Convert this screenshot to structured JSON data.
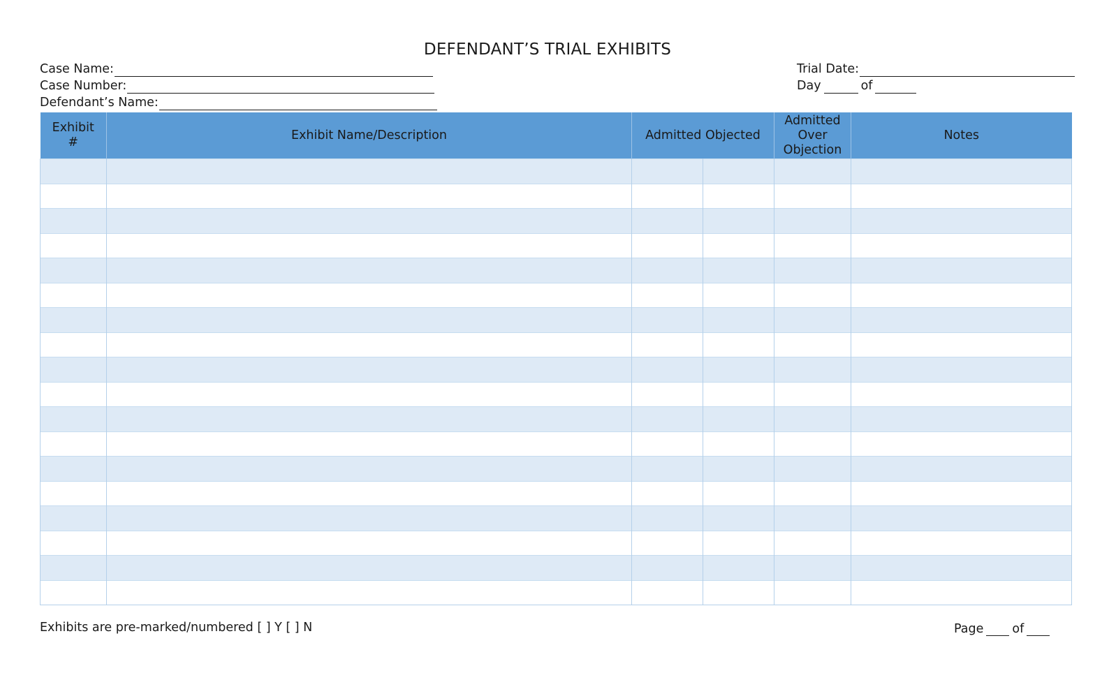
{
  "document": {
    "title": "DEFENDANT’S TRIAL EXHIBITS"
  },
  "fields": {
    "case_name_label": "Case Name:",
    "case_number_label": "Case Number:",
    "defendant_name_label": "Defendant’s Name:",
    "trial_date_label": "Trial Date:",
    "day_label": "Day",
    "day_of_label": "of"
  },
  "table": {
    "headers": {
      "exhibit_number": "Exhibit #",
      "description": "Exhibit Name/Description",
      "admitted_objected": "Admitted Objected",
      "admitted_over_objection": "Admitted Over Objection",
      "notes": "Notes"
    },
    "row_count": 18
  },
  "footer": {
    "premarked": "Exhibits are pre-marked/numbered [ ] Y [ ] N",
    "page_label": "Page",
    "page_of_label": "of"
  },
  "colors": {
    "header_bg": "#5b9bd5",
    "band_bg": "#deeaf6",
    "grid_line": "#b4d0ea"
  }
}
